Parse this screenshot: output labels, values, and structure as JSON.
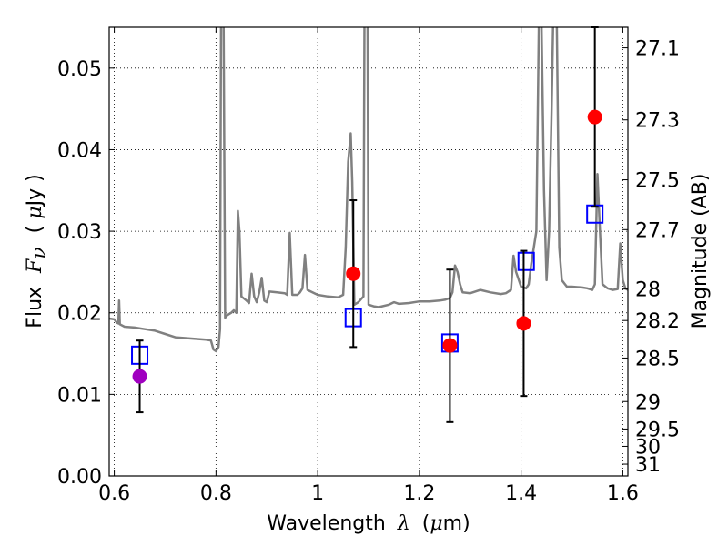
{
  "chart_data": {
    "type": "scatter",
    "xlabel": {
      "main": "Wavelength",
      "symbol": "λ",
      "unit_open": "(",
      "unit_mu": "μ",
      "unit_rest": "m)"
    },
    "ylabel": {
      "main": "Flux",
      "symbol": "F",
      "subscript": "ν",
      "unit_open": "(",
      "unit_mu": "μ",
      "unit_rest": "Jy )"
    },
    "ylabel_right": "Magnitude (AB)",
    "xlim": [
      0.59,
      1.61
    ],
    "ylim": [
      0.0,
      0.055
    ],
    "x_ticks": [
      0.6,
      0.8,
      1.0,
      1.2,
      1.4,
      1.6
    ],
    "x_tick_labels": [
      "0.6",
      "0.8",
      "1",
      "1.2",
      "1.4",
      "1.6"
    ],
    "y_ticks": [
      0.0,
      0.01,
      0.02,
      0.03,
      0.04,
      0.05
    ],
    "y_tick_labels": [
      "0.00",
      "0.01",
      "0.02",
      "0.03",
      "0.04",
      "0.05"
    ],
    "right_ticks": [
      {
        "mag": 27.1,
        "label": "27.1"
      },
      {
        "mag": 27.3,
        "label": "27.3"
      },
      {
        "mag": 27.5,
        "label": "27.5"
      },
      {
        "mag": 27.7,
        "label": "27.7"
      },
      {
        "mag": 28.0,
        "label": "28"
      },
      {
        "mag": 28.2,
        "label": "28.2"
      },
      {
        "mag": 28.5,
        "label": "28.5"
      },
      {
        "mag": 29.0,
        "label": "29"
      },
      {
        "mag": 29.5,
        "label": "29.5"
      },
      {
        "mag": 30.0,
        "label": "30"
      },
      {
        "mag": 31.0,
        "label": "31"
      }
    ],
    "grid": true,
    "series": [
      {
        "name": "model_spectrum",
        "kind": "line",
        "color": "#808080",
        "points": [
          [
            0.59,
            0.0193
          ],
          [
            0.6,
            0.0192
          ],
          [
            0.605,
            0.0188
          ],
          [
            0.608,
            0.0187
          ],
          [
            0.6095,
            0.0215
          ],
          [
            0.611,
            0.0186
          ],
          [
            0.62,
            0.0183
          ],
          [
            0.64,
            0.0182
          ],
          [
            0.66,
            0.018
          ],
          [
            0.68,
            0.0178
          ],
          [
            0.7,
            0.0174
          ],
          [
            0.72,
            0.017
          ],
          [
            0.74,
            0.0169
          ],
          [
            0.76,
            0.0168
          ],
          [
            0.78,
            0.0167
          ],
          [
            0.79,
            0.0166
          ],
          [
            0.795,
            0.0155
          ],
          [
            0.8,
            0.0153
          ],
          [
            0.805,
            0.0158
          ],
          [
            0.808,
            0.018
          ],
          [
            0.81,
            0.055
          ],
          [
            0.812,
            0.056
          ],
          [
            0.815,
            0.056
          ],
          [
            0.818,
            0.0194
          ],
          [
            0.822,
            0.0197
          ],
          [
            0.83,
            0.02
          ],
          [
            0.835,
            0.0203
          ],
          [
            0.84,
            0.02
          ],
          [
            0.843,
            0.0325
          ],
          [
            0.846,
            0.03
          ],
          [
            0.85,
            0.022
          ],
          [
            0.86,
            0.0215
          ],
          [
            0.865,
            0.0212
          ],
          [
            0.87,
            0.0248
          ],
          [
            0.875,
            0.022
          ],
          [
            0.88,
            0.0213
          ],
          [
            0.885,
            0.0225
          ],
          [
            0.89,
            0.0243
          ],
          [
            0.895,
            0.0215
          ],
          [
            0.9,
            0.0213
          ],
          [
            0.905,
            0.0226
          ],
          [
            0.92,
            0.0225
          ],
          [
            0.935,
            0.0224
          ],
          [
            0.94,
            0.0222
          ],
          [
            0.945,
            0.0298
          ],
          [
            0.95,
            0.0222
          ],
          [
            0.96,
            0.0222
          ],
          [
            0.965,
            0.0225
          ],
          [
            0.97,
            0.023
          ],
          [
            0.975,
            0.0271
          ],
          [
            0.98,
            0.0228
          ],
          [
            1.0,
            0.0222
          ],
          [
            1.02,
            0.022
          ],
          [
            1.04,
            0.0219
          ],
          [
            1.05,
            0.0222
          ],
          [
            1.055,
            0.028
          ],
          [
            1.06,
            0.0385
          ],
          [
            1.065,
            0.042
          ],
          [
            1.068,
            0.036
          ],
          [
            1.072,
            0.021
          ],
          [
            1.08,
            0.0213
          ],
          [
            1.09,
            0.022
          ],
          [
            1.092,
            0.056
          ],
          [
            1.095,
            0.056
          ],
          [
            1.098,
            0.056
          ],
          [
            1.1,
            0.021
          ],
          [
            1.11,
            0.0208
          ],
          [
            1.12,
            0.0207
          ],
          [
            1.14,
            0.021
          ],
          [
            1.15,
            0.0213
          ],
          [
            1.16,
            0.0211
          ],
          [
            1.18,
            0.0212
          ],
          [
            1.2,
            0.0214
          ],
          [
            1.22,
            0.0214
          ],
          [
            1.24,
            0.0215
          ],
          [
            1.25,
            0.0216
          ],
          [
            1.26,
            0.0218
          ],
          [
            1.265,
            0.0225
          ],
          [
            1.27,
            0.0258
          ],
          [
            1.275,
            0.025
          ],
          [
            1.28,
            0.0235
          ],
          [
            1.285,
            0.0225
          ],
          [
            1.3,
            0.0224
          ],
          [
            1.32,
            0.0228
          ],
          [
            1.34,
            0.0225
          ],
          [
            1.36,
            0.0223
          ],
          [
            1.37,
            0.0224
          ],
          [
            1.38,
            0.0228
          ],
          [
            1.385,
            0.027
          ],
          [
            1.39,
            0.025
          ],
          [
            1.4,
            0.0232
          ],
          [
            1.41,
            0.023
          ],
          [
            1.415,
            0.0235
          ],
          [
            1.42,
            0.026
          ],
          [
            1.43,
            0.03
          ],
          [
            1.435,
            0.056
          ],
          [
            1.44,
            0.056
          ],
          [
            1.445,
            0.035
          ],
          [
            1.45,
            0.024
          ],
          [
            1.455,
            0.03
          ],
          [
            1.46,
            0.045
          ],
          [
            1.463,
            0.056
          ],
          [
            1.466,
            0.056
          ],
          [
            1.47,
            0.056
          ],
          [
            1.475,
            0.028
          ],
          [
            1.48,
            0.024
          ],
          [
            1.49,
            0.0232
          ],
          [
            1.5,
            0.0232
          ],
          [
            1.52,
            0.0231
          ],
          [
            1.53,
            0.023
          ],
          [
            1.54,
            0.0228
          ],
          [
            1.545,
            0.0235
          ],
          [
            1.55,
            0.037
          ],
          [
            1.555,
            0.03
          ],
          [
            1.56,
            0.0235
          ],
          [
            1.57,
            0.023
          ],
          [
            1.58,
            0.0228
          ],
          [
            1.59,
            0.0229
          ],
          [
            1.595,
            0.0285
          ],
          [
            1.6,
            0.024
          ],
          [
            1.605,
            0.023
          ],
          [
            1.61,
            0.0228
          ]
        ]
      },
      {
        "name": "model_synthetic_photometry",
        "kind": "open_square",
        "color": "#0000FF",
        "points": [
          [
            0.65,
            0.0148
          ],
          [
            1.07,
            0.0194
          ],
          [
            1.26,
            0.0163
          ],
          [
            1.41,
            0.0263
          ],
          [
            1.545,
            0.0321
          ]
        ]
      },
      {
        "name": "observed_photometry",
        "kind": "filled_circle_errorbar",
        "points": [
          {
            "x": 0.65,
            "y": 0.0122,
            "yerr_low": 0.0078,
            "yerr_high": 0.0166,
            "color": "#A000C0"
          },
          {
            "x": 1.07,
            "y": 0.0248,
            "yerr_low": 0.0158,
            "yerr_high": 0.0338,
            "color": "#FF0000"
          },
          {
            "x": 1.26,
            "y": 0.016,
            "yerr_low": 0.0066,
            "yerr_high": 0.0253,
            "color": "#FF0000"
          },
          {
            "x": 1.405,
            "y": 0.0187,
            "yerr_low": 0.0098,
            "yerr_high": 0.0276,
            "color": "#FF0000"
          },
          {
            "x": 1.545,
            "y": 0.044,
            "yerr_low": 0.033,
            "yerr_high": 0.055,
            "color": "#FF0000"
          }
        ]
      }
    ]
  }
}
